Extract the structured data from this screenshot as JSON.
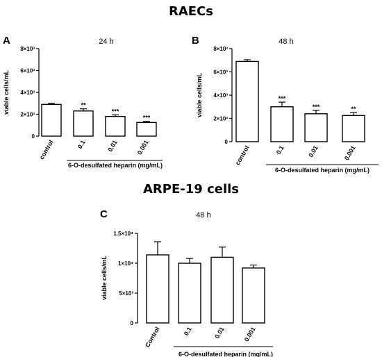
{
  "figure": {
    "title_top": "RAECs",
    "title_bottom": "ARPE-19 cells"
  },
  "chart_data": [
    {
      "type": "bar",
      "panel": "A",
      "subtitle": "24 h",
      "categories": [
        "control",
        "0.1",
        "0.01",
        "0.001"
      ],
      "values": [
        2900,
        2300,
        1800,
        1250
      ],
      "errors": [
        100,
        200,
        150,
        100
      ],
      "significance": [
        "",
        "**",
        "***",
        "***"
      ],
      "ylabel": "viable cells/mL",
      "xlabel": "6-O-desulfated heparin (mg/mL)",
      "ylim": [
        0,
        8000
      ],
      "yticks": [
        0,
        2000,
        4000,
        6000,
        8000
      ],
      "ytick_labels": [
        "0",
        "2×10³",
        "4×10³",
        "6×10³",
        "8×10³"
      ],
      "grid": false
    },
    {
      "type": "bar",
      "panel": "B",
      "subtitle": "48 h",
      "categories": [
        "control",
        "0.1",
        "0.01",
        "0.001"
      ],
      "values": [
        6900,
        3000,
        2400,
        2250
      ],
      "errors": [
        150,
        400,
        300,
        250
      ],
      "significance": [
        "",
        "***",
        "***",
        "**"
      ],
      "ylabel": "viable cells/mL",
      "xlabel": "6-O-desulfated heparin (mg/mL)",
      "ylim": [
        0,
        8000
      ],
      "yticks": [
        0,
        2000,
        4000,
        6000,
        8000
      ],
      "ytick_labels": [
        "0",
        "2×10³",
        "4×10³",
        "6×10³",
        "8×10³"
      ],
      "grid": false
    },
    {
      "type": "bar",
      "panel": "C",
      "subtitle": "48 h",
      "categories": [
        "Control",
        "0.1",
        "0.01",
        "0.001"
      ],
      "values": [
        11400,
        10000,
        11000,
        9200
      ],
      "errors": [
        2200,
        800,
        1700,
        500
      ],
      "significance": [
        "",
        "",
        "",
        ""
      ],
      "ylabel": "viable cells/mL",
      "xlabel": "6-O-desulfated heparin (mg/mL)",
      "ylim": [
        0,
        15000
      ],
      "yticks": [
        0,
        5000,
        10000,
        15000
      ],
      "ytick_labels": [
        "0",
        "5×10³",
        "1×10⁴",
        "1.5×10⁴"
      ],
      "grid": false
    }
  ]
}
